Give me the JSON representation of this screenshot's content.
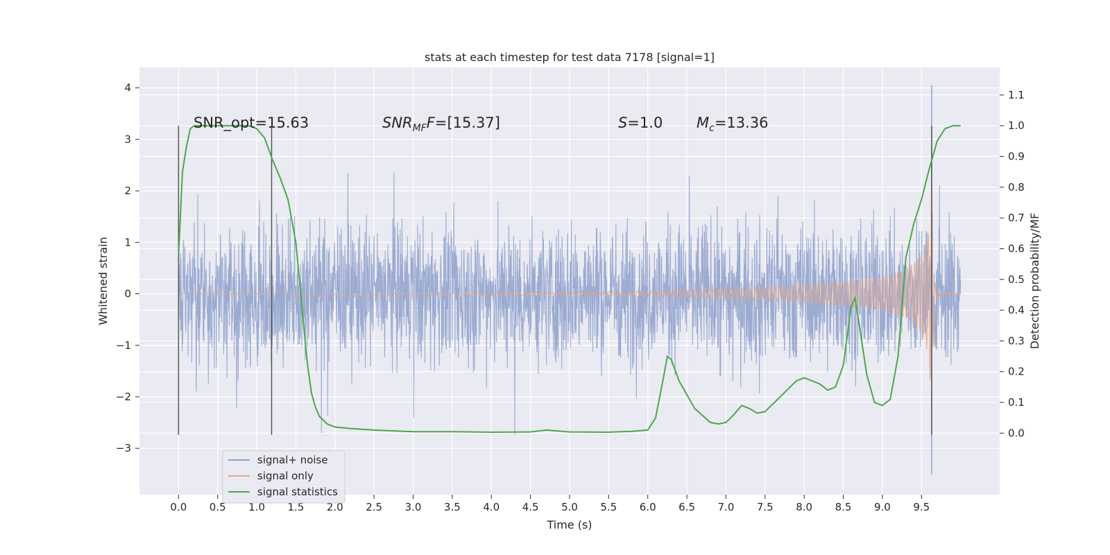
{
  "chart_data": {
    "type": "line",
    "title": "stats at each timestep for test data 7178 [signal=1]",
    "xlabel": "Time (s)",
    "ylabel": "Whitened strain",
    "ylabel_right": "Detection probability/MF",
    "xlim": [
      -0.5,
      10.5
    ],
    "ylim": [
      -3.9,
      4.4
    ],
    "ylim_right": [
      -0.2,
      1.19
    ],
    "x_ticks": [
      "0.0",
      "0.5",
      "1.0",
      "1.5",
      "2.0",
      "2.5",
      "3.0",
      "3.5",
      "4.0",
      "4.5",
      "5.0",
      "5.5",
      "6.0",
      "6.5",
      "7.0",
      "7.5",
      "8.0",
      "8.5",
      "9.0",
      "9.5"
    ],
    "y_ticks": [
      "−3",
      "−2",
      "−1",
      "0",
      "1",
      "2",
      "3",
      "4"
    ],
    "y_ticks_right": [
      "0.0",
      "0.1",
      "0.2",
      "0.3",
      "0.4",
      "0.5",
      "0.6",
      "0.7",
      "0.8",
      "0.9",
      "1.0",
      "1.1"
    ],
    "grid": true,
    "legend_position": "lower-left",
    "annotations": {
      "snr_opt": "SNR_opt=15.63",
      "snr_mf_base": "SNR",
      "snr_mf_sub": "MF",
      "snr_mf_value": "=[15.37]",
      "s_label": "S",
      "s_value": "=1.0",
      "mc_label": "M",
      "mc_sub": "c",
      "mc_value": "=13.36"
    },
    "vertical_markers": [
      0.0,
      1.19,
      9.63
    ],
    "series": [
      {
        "name": "signal+ noise",
        "axis": "left",
        "color": "#8da0cb",
        "description": "whitened strain noise, roughly gaussian, amplitude envelope about ±2.5 with spikes to 4.05 near t=9.63"
      },
      {
        "name": "signal only",
        "axis": "left",
        "color": "#e5a588",
        "envelope": {
          "t": [
            0.0,
            5.0,
            6.0,
            7.0,
            8.0,
            8.5,
            9.0,
            9.3,
            9.5,
            9.6,
            9.63,
            9.66,
            9.7,
            10.0
          ],
          "amp": [
            0.0,
            0.03,
            0.06,
            0.1,
            0.17,
            0.23,
            0.33,
            0.47,
            0.75,
            1.25,
            2.6,
            0.3,
            0.05,
            0.0
          ]
        }
      },
      {
        "name": "signal statistics",
        "axis": "right",
        "color": "#4ca64c",
        "x": [
          0.0,
          0.05,
          0.1,
          0.15,
          0.2,
          0.3,
          0.5,
          0.7,
          0.9,
          1.0,
          1.1,
          1.2,
          1.3,
          1.4,
          1.5,
          1.6,
          1.65,
          1.7,
          1.75,
          1.8,
          1.9,
          2.0,
          2.2,
          2.5,
          3.0,
          3.5,
          4.0,
          4.5,
          4.7,
          5.0,
          5.5,
          5.8,
          6.0,
          6.1,
          6.2,
          6.25,
          6.3,
          6.4,
          6.6,
          6.8,
          6.9,
          7.0,
          7.1,
          7.2,
          7.3,
          7.4,
          7.5,
          7.7,
          7.9,
          8.0,
          8.1,
          8.2,
          8.3,
          8.4,
          8.5,
          8.6,
          8.65,
          8.7,
          8.8,
          8.9,
          9.0,
          9.1,
          9.2,
          9.3,
          9.4,
          9.5,
          9.6,
          9.7,
          9.8,
          9.9,
          10.0
        ],
        "y": [
          0.58,
          0.85,
          0.93,
          0.99,
          1.0,
          1.0,
          1.0,
          1.0,
          1.0,
          0.99,
          0.96,
          0.89,
          0.83,
          0.76,
          0.62,
          0.35,
          0.22,
          0.13,
          0.085,
          0.055,
          0.03,
          0.02,
          0.015,
          0.01,
          0.005,
          0.005,
          0.003,
          0.004,
          0.01,
          0.004,
          0.003,
          0.006,
          0.01,
          0.05,
          0.18,
          0.25,
          0.24,
          0.17,
          0.08,
          0.035,
          0.03,
          0.035,
          0.06,
          0.09,
          0.08,
          0.065,
          0.07,
          0.12,
          0.17,
          0.18,
          0.17,
          0.16,
          0.14,
          0.15,
          0.22,
          0.41,
          0.44,
          0.36,
          0.19,
          0.1,
          0.09,
          0.11,
          0.25,
          0.57,
          0.68,
          0.76,
          0.86,
          0.95,
          0.99,
          1.0,
          1.0
        ]
      }
    ]
  }
}
